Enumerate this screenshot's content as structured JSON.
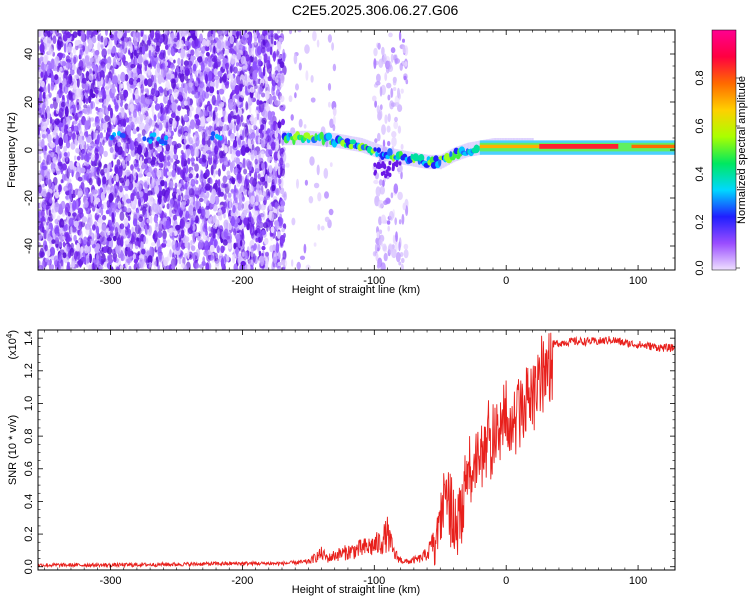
{
  "figure_title": "C2E5.2025.306.06.27.G06",
  "colorbar": {
    "label": "Normalized spectral amplitude",
    "ticks": [
      0.0,
      0.2,
      0.4,
      0.6,
      0.8
    ],
    "tick_labels": [
      "0.0",
      "0.2",
      "0.4",
      "0.6",
      "0.8"
    ],
    "colors": [
      "#efe0ff",
      "#9a4dff",
      "#1f1fff",
      "#00d8ff",
      "#00e860",
      "#aaff00",
      "#ffd000",
      "#ff6a00",
      "#ff0040",
      "#ff0090"
    ]
  },
  "chart_data": [
    {
      "type": "heatmap",
      "title": "",
      "xlabel": "Height of straight line (km)",
      "ylabel": "Frequency (Hz)",
      "xlim": [
        -355,
        128
      ],
      "ylim": [
        -50,
        50
      ],
      "xticks": [
        -300,
        -200,
        -100,
        0,
        100
      ],
      "xtick_labels": [
        "-300",
        "-200",
        "-100",
        "0",
        "100"
      ],
      "yticks": [
        -40,
        -20,
        0,
        20,
        40
      ],
      "ytick_labels": [
        "-40",
        "-20",
        "0",
        "20",
        "40"
      ],
      "ridge": {
        "x": [
          -170,
          -150,
          -130,
          -110,
          -100,
          -90,
          -80,
          -70,
          -60,
          -50,
          -40,
          -30,
          -20,
          -10,
          0,
          20,
          40,
          60,
          80,
          100,
          128
        ],
        "y": [
          5,
          5,
          4,
          2,
          0,
          -2,
          -3,
          -4,
          -5,
          -5,
          -2,
          0,
          1,
          2,
          2,
          2,
          2,
          2,
          2,
          2,
          2
        ]
      },
      "noise_regions": [
        {
          "x": [
            -355,
            -168
          ],
          "density": "high"
        },
        {
          "x": [
            -168,
            -130
          ],
          "density": "low"
        },
        {
          "x": [
            -100,
            -75
          ],
          "density": "medium"
        }
      ]
    },
    {
      "type": "line",
      "title": "",
      "xlabel": "Height of straight line (km)",
      "ylabel": "SNR (10 * v/v)",
      "y_scale_note": "(x10^4)",
      "xlim": [
        -355,
        128
      ],
      "ylim": [
        -0.02,
        1.45
      ],
      "xticks": [
        -300,
        -200,
        -100,
        0,
        100
      ],
      "xtick_labels": [
        "-300",
        "-200",
        "-100",
        "0",
        "100"
      ],
      "yticks": [
        0.0,
        0.2,
        0.4,
        0.6,
        0.8,
        1.0,
        1.2,
        1.4
      ],
      "ytick_labels": [
        "0.0",
        "0.2",
        "0.4",
        "0.6",
        "0.8",
        "1.0",
        "1.2",
        "1.4"
      ],
      "color": "#e8201c",
      "series": [
        {
          "x": [
            -355,
            -300,
            -250,
            -200,
            -170,
            -150,
            -140,
            -135,
            -130,
            -120,
            -110,
            -100,
            -95,
            -90,
            -85,
            -80,
            -75,
            -70,
            -65,
            -60,
            -55,
            -52,
            -50,
            -45,
            -40,
            -35,
            -30,
            -25,
            -20,
            -15,
            -10,
            -5,
            0,
            5,
            10,
            15,
            20,
            25,
            30,
            35,
            40,
            50,
            60,
            70,
            80,
            90,
            100,
            110,
            120,
            128
          ],
          "y": [
            0.01,
            0.01,
            0.015,
            0.02,
            0.02,
            0.03,
            0.08,
            0.05,
            0.07,
            0.09,
            0.11,
            0.13,
            0.15,
            0.2,
            0.08,
            0.04,
            0.03,
            0.04,
            0.05,
            0.08,
            0.15,
            0.35,
            0.45,
            0.55,
            0.45,
            0.4,
            0.65,
            0.8,
            0.85,
            0.9,
            0.95,
            1.0,
            1.05,
            1.05,
            1.1,
            1.15,
            1.2,
            1.28,
            1.33,
            1.36,
            1.37,
            1.38,
            1.38,
            1.38,
            1.39,
            1.37,
            1.36,
            1.35,
            1.34,
            1.34
          ]
        }
      ]
    }
  ]
}
